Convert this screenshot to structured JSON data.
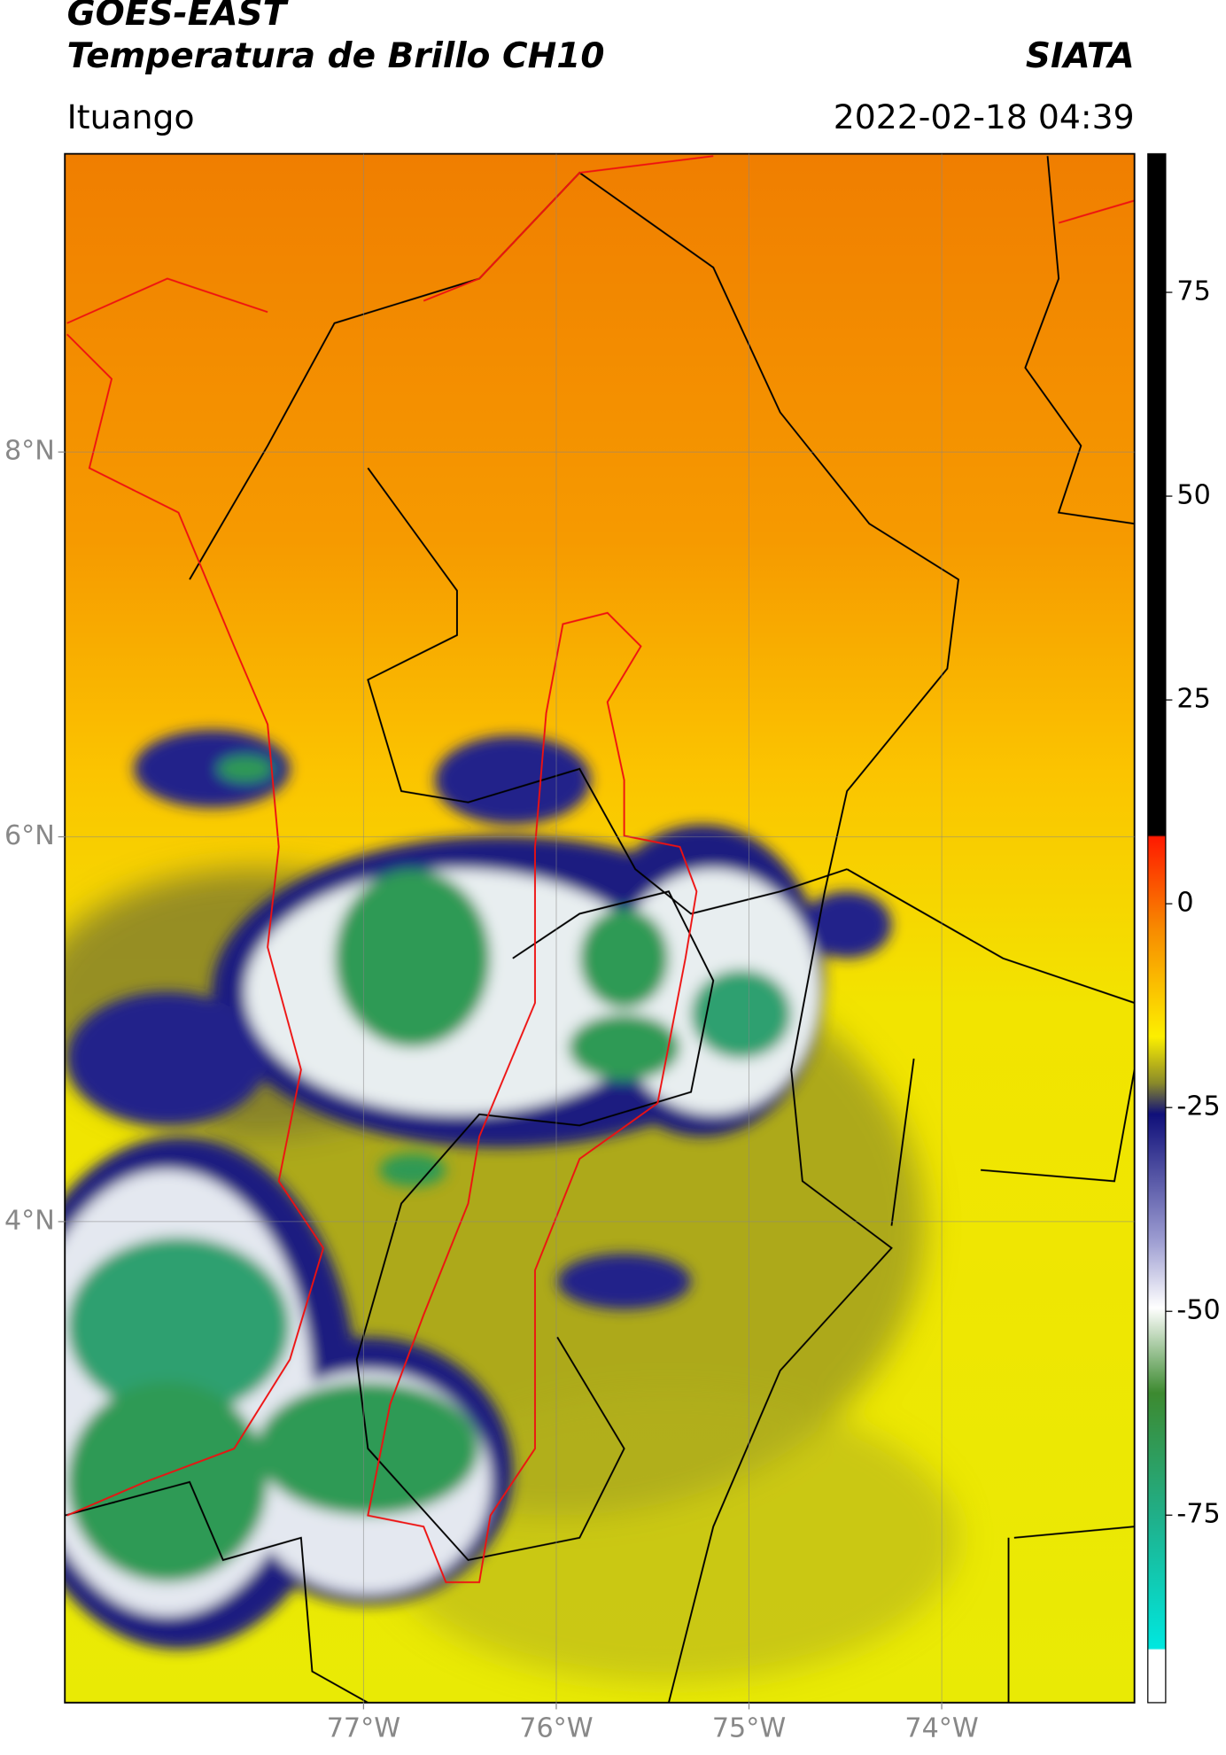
{
  "header": {
    "title": "GOES-EAST",
    "subtitle": "Temperatura de Brillo CH10",
    "source": "SIATA",
    "location": "Ituango",
    "datetime": "2022-02-18 04:39"
  },
  "map": {
    "xlim": [
      -78.55,
      -73.0
    ],
    "ylim": [
      1.5,
      9.55
    ],
    "xticks": [
      {
        "value": -77,
        "label": "77°W"
      },
      {
        "value": -76,
        "label": "76°W"
      },
      {
        "value": -75,
        "label": "75°W"
      },
      {
        "value": -74,
        "label": "74°W"
      }
    ],
    "yticks": [
      {
        "value": 8,
        "label": "8°N"
      },
      {
        "value": 6,
        "label": "6°N"
      },
      {
        "value": 4,
        "label": "4°N"
      }
    ],
    "grid": true
  },
  "colorbar": {
    "lim": [
      -98,
      92
    ],
    "ticks": [
      75,
      50,
      25,
      0,
      -25,
      -50,
      -75
    ]
  }
}
